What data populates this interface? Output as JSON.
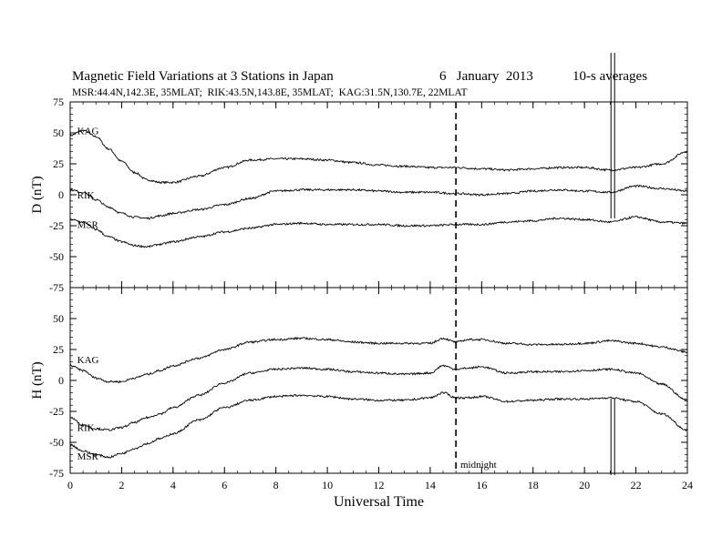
{
  "title": "Magnetic Field Variations at 3 Stations in Japan",
  "date": "6   January  2013",
  "averaging": "10-s averages",
  "stations_line": "MSR:44.4N,142.3E, 35MLAT;  RIK:43.5N,143.8E, 35MLAT;  KAG:31.5N,130.7E, 22MLAT",
  "midnight_label": "midnight",
  "chart_data": [
    {
      "type": "line",
      "panel": "top",
      "ylabel": "D (nT)",
      "ylim": [
        -75,
        75
      ],
      "yticks": [
        -75,
        -50,
        -25,
        0,
        25,
        50,
        75
      ],
      "xlim": [
        0,
        24
      ],
      "xticks": [
        0,
        2,
        4,
        6,
        8,
        10,
        12,
        14,
        16,
        18,
        20,
        22,
        24
      ],
      "series": [
        {
          "name": "KAG",
          "x": [
            0,
            0.5,
            1,
            1.5,
            2,
            2.5,
            3,
            3.5,
            4,
            5,
            6,
            7,
            8,
            9,
            10,
            11,
            12,
            13,
            14,
            15,
            16,
            17,
            18,
            19,
            20,
            21,
            22,
            23,
            24
          ],
          "values": [
            48,
            52,
            47,
            37,
            27,
            18,
            12,
            10,
            10,
            15,
            22,
            28,
            29,
            29,
            28,
            26,
            24,
            23,
            22,
            22,
            21,
            20,
            21,
            22,
            22,
            20,
            22,
            25,
            35
          ]
        },
        {
          "name": "RIK",
          "x": [
            0,
            0.5,
            1,
            1.5,
            2,
            2.5,
            3,
            3.5,
            4,
            5,
            6,
            7,
            8,
            9,
            10,
            11,
            12,
            13,
            14,
            15,
            16,
            17,
            18,
            19,
            20,
            21,
            22,
            23,
            24
          ],
          "values": [
            4,
            2,
            -4,
            -10,
            -15,
            -18,
            -19,
            -17,
            -15,
            -12,
            -8,
            -3,
            3,
            4,
            4,
            4,
            3,
            2,
            2,
            1,
            0,
            1,
            3,
            4,
            3,
            2,
            7,
            5,
            3
          ]
        },
        {
          "name": "MSR",
          "x": [
            0,
            0.5,
            1,
            1.5,
            2,
            2.5,
            3,
            3.5,
            4,
            5,
            6,
            7,
            8,
            9,
            10,
            11,
            12,
            13,
            14,
            15,
            16,
            17,
            18,
            19,
            20,
            21,
            22,
            23,
            24
          ],
          "values": [
            -20,
            -22,
            -28,
            -34,
            -38,
            -41,
            -42,
            -40,
            -38,
            -34,
            -30,
            -27,
            -24,
            -23,
            -24,
            -24,
            -24,
            -25,
            -25,
            -24,
            -24,
            -22,
            -21,
            -19,
            -20,
            -22,
            -18,
            -22,
            -23
          ]
        }
      ],
      "annotations": [
        {
          "text": "KAG",
          "x": 0.2,
          "y": 52
        },
        {
          "text": "RIK",
          "x": 0.2,
          "y": 0
        },
        {
          "text": "MSR",
          "x": 0.2,
          "y": -24
        }
      ]
    },
    {
      "type": "line",
      "panel": "bottom",
      "ylabel": "H (nT)",
      "xlabel": "Universal Time",
      "ylim": [
        -75,
        75
      ],
      "yticks": [
        -75,
        -50,
        -25,
        0,
        25,
        50
      ],
      "xlim": [
        0,
        24
      ],
      "xticks": [
        0,
        2,
        4,
        6,
        8,
        10,
        12,
        14,
        16,
        18,
        20,
        22,
        24
      ],
      "series": [
        {
          "name": "KAG",
          "x": [
            0,
            0.5,
            1,
            1.5,
            2,
            2.5,
            3,
            3.5,
            4,
            5,
            6,
            7,
            8,
            9,
            10,
            11,
            12,
            13,
            14,
            14.5,
            15,
            15.5,
            16,
            17,
            18,
            19,
            20,
            21,
            22,
            23,
            24
          ],
          "values": [
            12,
            8,
            2,
            -1,
            -1,
            2,
            5,
            8,
            12,
            18,
            25,
            31,
            33,
            34,
            33,
            31,
            30,
            30,
            30,
            34,
            31,
            33,
            33,
            30,
            29,
            29,
            30,
            32,
            30,
            27,
            23
          ]
        },
        {
          "name": "RIK",
          "x": [
            0,
            0.5,
            1,
            1.5,
            2,
            2.5,
            3,
            3.5,
            4,
            5,
            6,
            7,
            8,
            9,
            10,
            11,
            12,
            13,
            14,
            14.5,
            15,
            15.5,
            16,
            17,
            18,
            19,
            20,
            21,
            22,
            23,
            24
          ],
          "values": [
            -30,
            -36,
            -39,
            -40,
            -38,
            -34,
            -30,
            -27,
            -22,
            -12,
            -2,
            6,
            9,
            10,
            9,
            7,
            6,
            5,
            6,
            12,
            9,
            10,
            11,
            6,
            7,
            7,
            8,
            9,
            6,
            -3,
            -16
          ]
        },
        {
          "name": "MSR",
          "x": [
            0,
            0.5,
            1,
            1.5,
            2,
            2.5,
            3,
            3.5,
            4,
            5,
            6,
            7,
            8,
            9,
            10,
            11,
            12,
            13,
            14,
            14.5,
            15,
            15.5,
            16,
            17,
            18,
            19,
            20,
            21,
            22,
            23,
            24
          ],
          "values": [
            -52,
            -57,
            -60,
            -62,
            -59,
            -55,
            -51,
            -47,
            -43,
            -32,
            -22,
            -16,
            -13,
            -12,
            -13,
            -15,
            -16,
            -16,
            -14,
            -10,
            -14,
            -14,
            -13,
            -17,
            -16,
            -15,
            -15,
            -14,
            -17,
            -27,
            -40
          ]
        }
      ],
      "annotations": [
        {
          "text": "KAG",
          "x": 0.2,
          "y": 17
        },
        {
          "text": "RIK",
          "x": 0.2,
          "y": -38
        },
        {
          "text": "MSR",
          "x": 0.2,
          "y": -61
        }
      ]
    }
  ],
  "markers": {
    "midnight_ut": 15,
    "event_ut": 21.1
  },
  "colors": {
    "background": "#ffffff",
    "ink": "#000000"
  }
}
